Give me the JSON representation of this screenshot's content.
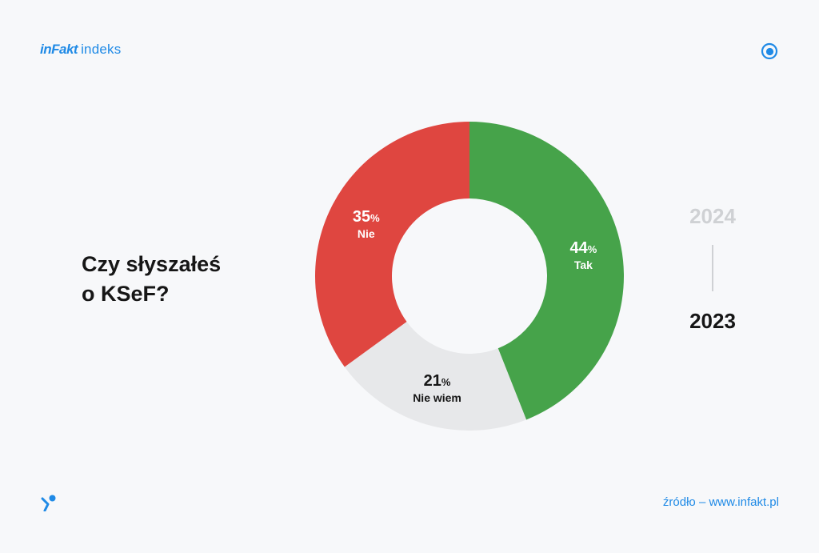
{
  "header": {
    "logo_text": "inFakt",
    "logo_suffix": "indeks",
    "eye_icon": "eye-icon"
  },
  "question": {
    "line1": "Czy słyszałeś",
    "line2": "o KSeF?"
  },
  "year_switcher": {
    "years": [
      "2024",
      "2023"
    ],
    "active": "2023"
  },
  "footer": {
    "logo_icon": "infakt-mark-icon",
    "source": "źródło – www.infakt.pl"
  },
  "colors": {
    "accent": "#1f8ae6",
    "tak": "#46a34a",
    "nie": "#df4640",
    "nie_wiem": "#e7e8ea"
  },
  "chart_data": {
    "type": "pie",
    "title": "",
    "categories": [
      "Tak",
      "Nie wiem",
      "Nie"
    ],
    "values": [
      44,
      21,
      35
    ],
    "unit": "%",
    "slices": [
      {
        "label": "Tak",
        "value": 44,
        "color": "#46a34a",
        "text_color": "#ffffff"
      },
      {
        "label": "Nie wiem",
        "value": 21,
        "color": "#e7e8ea",
        "text_color": "#161616"
      },
      {
        "label": "Nie",
        "value": 35,
        "color": "#df4640",
        "text_color": "#ffffff"
      }
    ]
  }
}
